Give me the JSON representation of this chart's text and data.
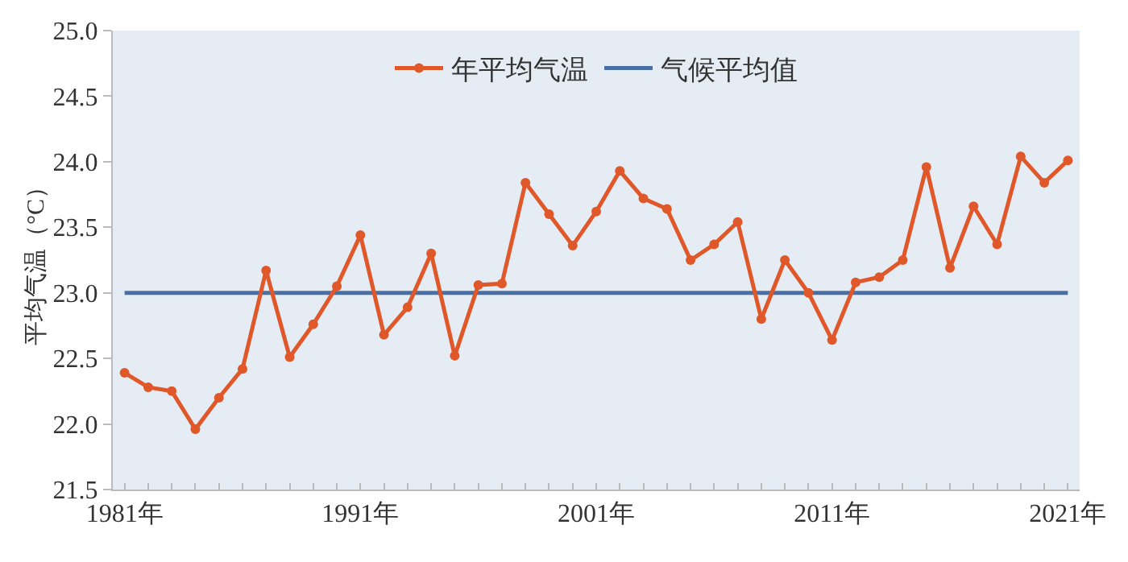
{
  "chart_data": {
    "type": "line",
    "ylabel": "平均气温（°C）",
    "x": [
      1981,
      1982,
      1983,
      1984,
      1985,
      1986,
      1987,
      1988,
      1989,
      1990,
      1991,
      1992,
      1993,
      1994,
      1995,
      1996,
      1997,
      1998,
      1999,
      2000,
      2001,
      2002,
      2003,
      2004,
      2005,
      2006,
      2007,
      2008,
      2009,
      2010,
      2011,
      2012,
      2013,
      2014,
      2015,
      2016,
      2017,
      2018,
      2019,
      2020,
      2021
    ],
    "series": [
      {
        "name": "年平均气温",
        "color": "#e0582a",
        "marker": "circle",
        "values": [
          22.39,
          22.28,
          22.25,
          21.96,
          22.2,
          22.42,
          23.17,
          22.51,
          22.76,
          23.05,
          23.44,
          22.68,
          22.89,
          23.3,
          22.52,
          23.06,
          23.07,
          23.84,
          23.6,
          23.36,
          23.62,
          23.93,
          23.72,
          23.64,
          23.25,
          23.37,
          23.54,
          22.8,
          23.25,
          23.0,
          22.64,
          23.08,
          23.12,
          23.25,
          23.96,
          23.19,
          23.66,
          23.37,
          24.04,
          23.84,
          24.01
        ]
      },
      {
        "name": "气候平均值",
        "color": "#4a6fa5",
        "marker": "none",
        "values": [
          23.0,
          23.0,
          23.0,
          23.0,
          23.0,
          23.0,
          23.0,
          23.0,
          23.0,
          23.0,
          23.0,
          23.0,
          23.0,
          23.0,
          23.0,
          23.0,
          23.0,
          23.0,
          23.0,
          23.0,
          23.0,
          23.0,
          23.0,
          23.0,
          23.0,
          23.0,
          23.0,
          23.0,
          23.0,
          23.0,
          23.0,
          23.0,
          23.0,
          23.0,
          23.0,
          23.0,
          23.0,
          23.0,
          23.0,
          23.0,
          23.0
        ]
      }
    ],
    "xlim": [
      1980.5,
      2021.5
    ],
    "xticks": [
      {
        "value": 1981,
        "label": "1981年"
      },
      {
        "value": 1991,
        "label": "1991年"
      },
      {
        "value": 2001,
        "label": "2001年"
      },
      {
        "value": 2011,
        "label": "2011年"
      },
      {
        "value": 2021,
        "label": "2021年"
      }
    ],
    "ylim": [
      21.5,
      25.0
    ],
    "yticks": [
      {
        "value": 21.5,
        "label": "21.5"
      },
      {
        "value": 22.0,
        "label": "22.0"
      },
      {
        "value": 22.5,
        "label": "22.5"
      },
      {
        "value": 23.0,
        "label": "23.0"
      },
      {
        "value": 23.5,
        "label": "23.5"
      },
      {
        "value": 24.0,
        "label": "24.0"
      },
      {
        "value": 24.5,
        "label": "24.5"
      },
      {
        "value": 25.0,
        "label": "25.0"
      }
    ],
    "grid": false,
    "legend": "top",
    "line_style": "solid"
  }
}
